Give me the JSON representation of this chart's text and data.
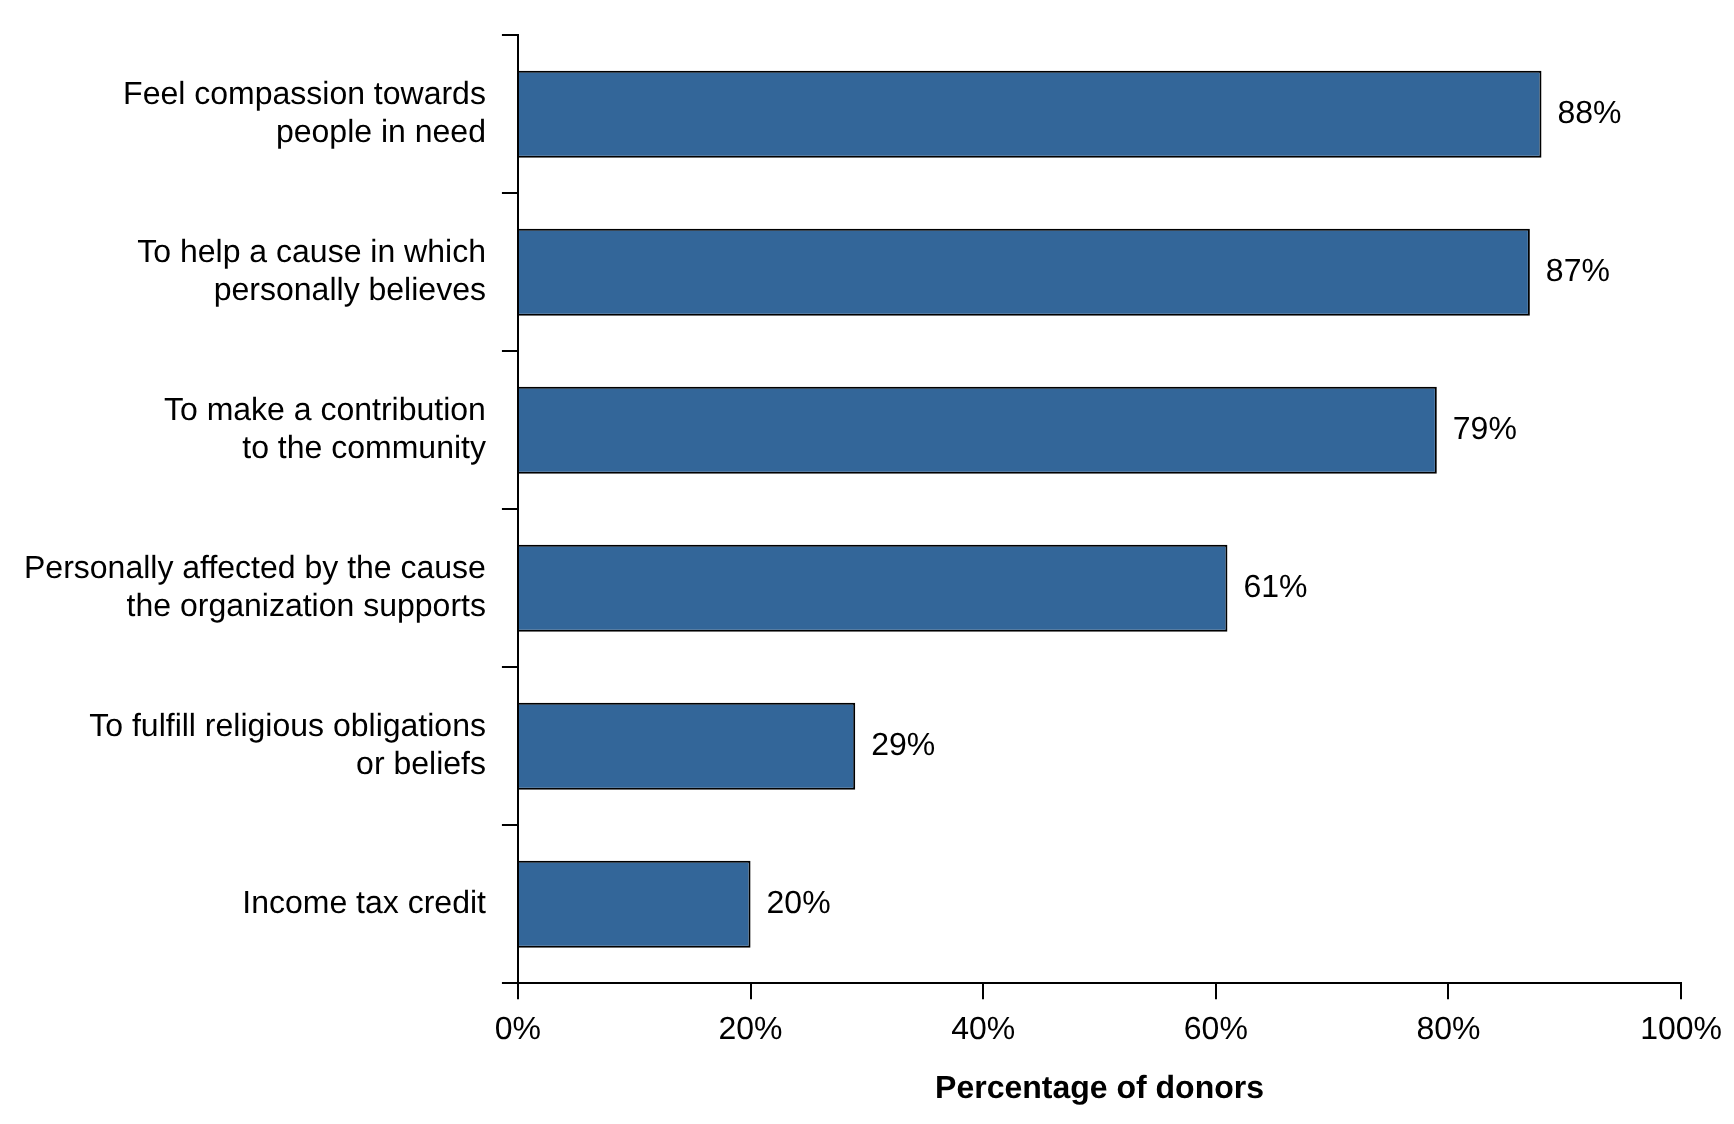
{
  "chart_data": {
    "type": "bar",
    "orientation": "horizontal",
    "categories": [
      "Feel compassion towards\npeople in need",
      "To help a cause in which\npersonally believes",
      "To make a contribution\nto the community",
      "Personally affected by the cause\nthe organization supports",
      "To fulfill religious obligations\nor beliefs",
      "Income tax credit"
    ],
    "values": [
      88,
      87,
      79,
      61,
      29,
      20
    ],
    "value_labels": [
      "88%",
      "87%",
      "79%",
      "61%",
      "29%",
      "20%"
    ],
    "color": "#336699",
    "xlabel": "Percentage of donors",
    "xlim": [
      0,
      100
    ],
    "xticks": [
      {
        "value": 0,
        "label": "0%"
      },
      {
        "value": 20,
        "label": "20%"
      },
      {
        "value": 40,
        "label": "40%"
      },
      {
        "value": 60,
        "label": "60%"
      },
      {
        "value": 80,
        "label": "80%"
      },
      {
        "value": 100,
        "label": "100%"
      }
    ],
    "grid": false,
    "legend": false
  }
}
